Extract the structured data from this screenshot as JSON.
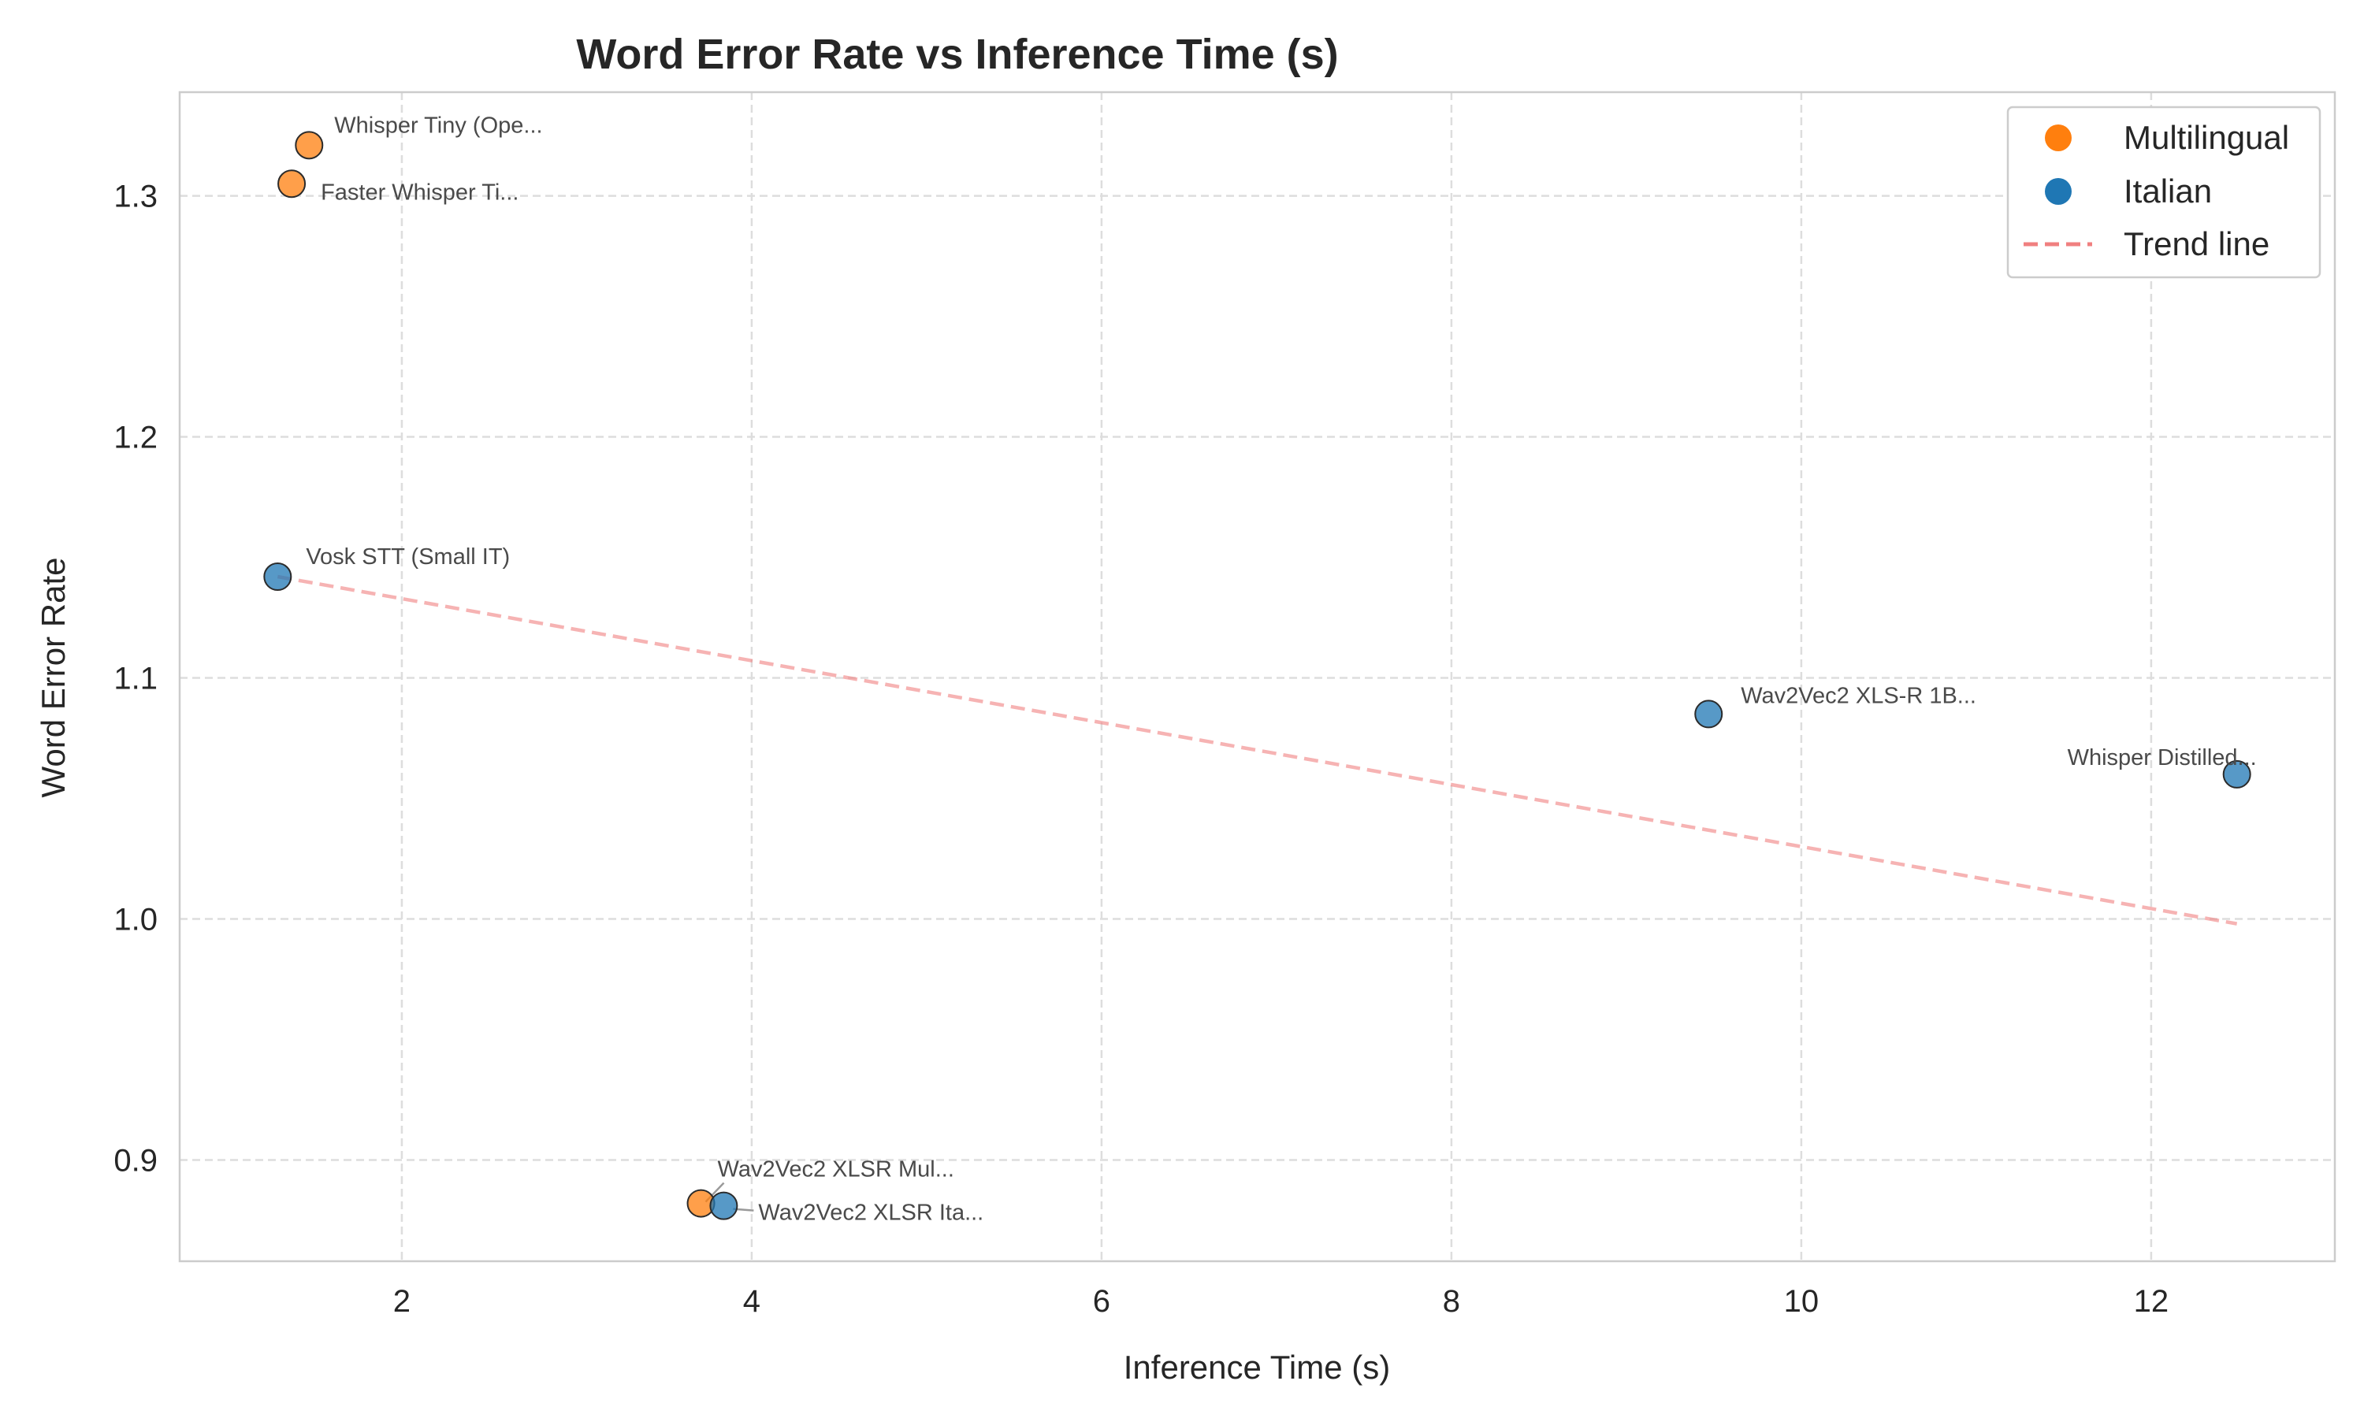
{
  "chart_data": {
    "type": "scatter",
    "title": "Word Error Rate vs Inference Time (s)",
    "xlabel": "Inference Time (s)",
    "ylabel": "Word Error Rate",
    "xlim": [
      0.73,
      13.05
    ],
    "ylim": [
      0.858,
      1.343
    ],
    "xticks": [
      2,
      4,
      6,
      8,
      10,
      12
    ],
    "yticks": [
      0.9,
      1.0,
      1.1,
      1.2,
      1.3
    ],
    "xtick_labels": [
      "2",
      "4",
      "6",
      "8",
      "10",
      "12"
    ],
    "ytick_labels": [
      "0.9",
      "1.0",
      "1.1",
      "1.2",
      "1.3"
    ],
    "grid": true,
    "legend_position": "top-right",
    "legend": [
      {
        "label": "Multilingual",
        "kind": "marker",
        "color": "#ff7f0e"
      },
      {
        "label": "Italian",
        "kind": "marker",
        "color": "#1f77b4"
      },
      {
        "label": "Trend line",
        "kind": "dashed-line",
        "color": "#f08080"
      }
    ],
    "points": [
      {
        "label": "Whisper Tiny (Ope...",
        "x": 1.47,
        "y": 1.321,
        "group": "Multilingual",
        "color": "#ff7f0e"
      },
      {
        "label": "Faster Whisper Ti...",
        "x": 1.37,
        "y": 1.305,
        "group": "Multilingual",
        "color": "#ff7f0e"
      },
      {
        "label": "Vosk STT (Small IT)",
        "x": 1.29,
        "y": 1.142,
        "group": "Italian",
        "color": "#1f77b4"
      },
      {
        "label": "Wav2Vec2 XLS-R 1B...",
        "x": 9.47,
        "y": 1.085,
        "group": "Italian",
        "color": "#1f77b4"
      },
      {
        "label": "Whisper Distilled...",
        "x": 12.49,
        "y": 1.06,
        "group": "Italian",
        "color": "#1f77b4"
      },
      {
        "label": "Wav2Vec2 XLSR Mul...",
        "x": 3.71,
        "y": 0.882,
        "group": "Multilingual",
        "color": "#ff7f0e"
      },
      {
        "label": "Wav2Vec2 XLSR Ita...",
        "x": 3.84,
        "y": 0.881,
        "group": "Italian",
        "color": "#1f77b4"
      }
    ],
    "trend_line": {
      "x": [
        1.29,
        12.49
      ],
      "y": [
        1.142,
        0.998
      ],
      "color": "#f08080"
    }
  }
}
